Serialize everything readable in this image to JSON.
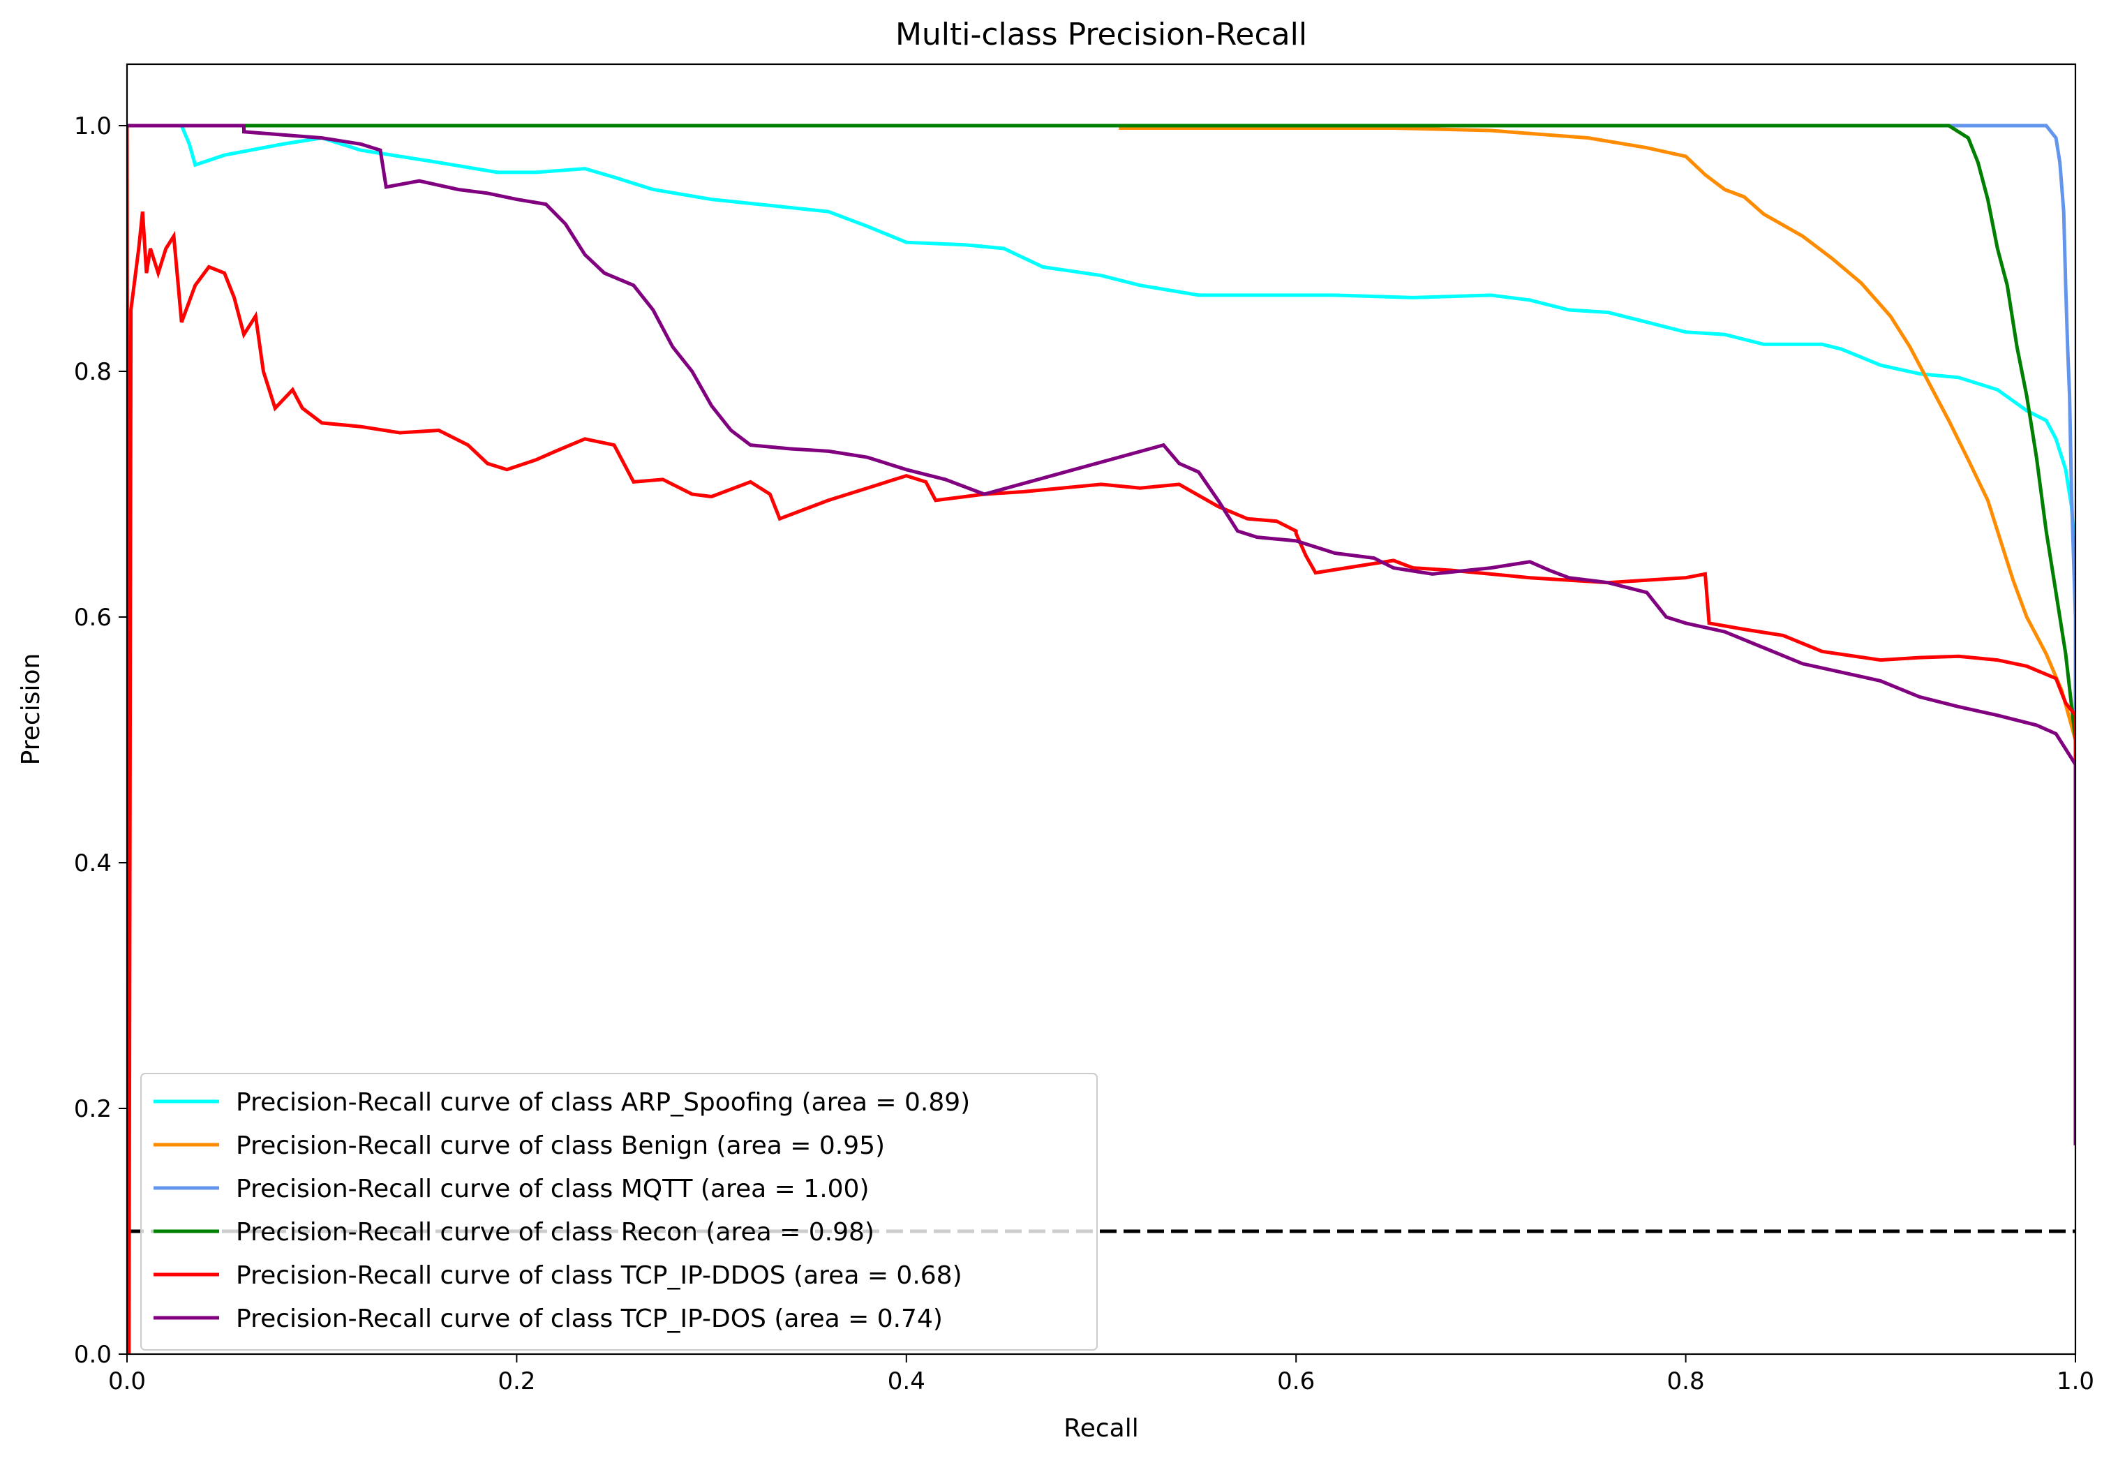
{
  "chart_data": {
    "type": "line",
    "title": "Multi-class Precision-Recall",
    "xlabel": "Recall",
    "ylabel": "Precision",
    "xlim": [
      0.0,
      1.0
    ],
    "ylim": [
      0.0,
      1.05
    ],
    "x_ticks": [
      "0.0",
      "0.2",
      "0.4",
      "0.6",
      "0.8",
      "1.0"
    ],
    "y_ticks": [
      "0.0",
      "0.2",
      "0.4",
      "0.6",
      "0.8",
      "1.0"
    ],
    "grid": false,
    "legend_position": "lower-left",
    "baseline": {
      "y": 0.1,
      "style": "dashed",
      "color": "#000000"
    },
    "series": [
      {
        "name": "Precision-Recall curve of class ARP_Spoofing (area = 0.89)",
        "color": "#00ffff",
        "points": [
          [
            0.0,
            1.0
          ],
          [
            0.028,
            1.0
          ],
          [
            0.032,
            0.985
          ],
          [
            0.035,
            0.968
          ],
          [
            0.05,
            0.976
          ],
          [
            0.08,
            0.985
          ],
          [
            0.1,
            0.99
          ],
          [
            0.12,
            0.98
          ],
          [
            0.14,
            0.975
          ],
          [
            0.16,
            0.97
          ],
          [
            0.19,
            0.962
          ],
          [
            0.21,
            0.962
          ],
          [
            0.235,
            0.965
          ],
          [
            0.25,
            0.958
          ],
          [
            0.27,
            0.948
          ],
          [
            0.3,
            0.94
          ],
          [
            0.33,
            0.935
          ],
          [
            0.36,
            0.93
          ],
          [
            0.38,
            0.918
          ],
          [
            0.4,
            0.905
          ],
          [
            0.43,
            0.903
          ],
          [
            0.45,
            0.9
          ],
          [
            0.47,
            0.885
          ],
          [
            0.5,
            0.878
          ],
          [
            0.52,
            0.87
          ],
          [
            0.55,
            0.862
          ],
          [
            0.58,
            0.862
          ],
          [
            0.62,
            0.862
          ],
          [
            0.66,
            0.86
          ],
          [
            0.7,
            0.862
          ],
          [
            0.72,
            0.858
          ],
          [
            0.74,
            0.85
          ],
          [
            0.76,
            0.848
          ],
          [
            0.78,
            0.84
          ],
          [
            0.8,
            0.832
          ],
          [
            0.82,
            0.83
          ],
          [
            0.84,
            0.822
          ],
          [
            0.87,
            0.822
          ],
          [
            0.88,
            0.818
          ],
          [
            0.9,
            0.805
          ],
          [
            0.92,
            0.798
          ],
          [
            0.94,
            0.795
          ],
          [
            0.96,
            0.785
          ],
          [
            0.975,
            0.768
          ],
          [
            0.985,
            0.76
          ],
          [
            0.99,
            0.745
          ],
          [
            0.995,
            0.72
          ],
          [
            0.998,
            0.69
          ],
          [
            1.0,
            0.65
          ],
          [
            1.0,
            0.2
          ]
        ]
      },
      {
        "name": "Precision-Recall curve of class Benign (area = 0.95)",
        "color": "#ff8c00",
        "points": [
          [
            0.0,
            1.0
          ],
          [
            0.51,
            1.0
          ],
          [
            0.51,
            0.998
          ],
          [
            0.65,
            0.998
          ],
          [
            0.7,
            0.996
          ],
          [
            0.75,
            0.99
          ],
          [
            0.78,
            0.982
          ],
          [
            0.8,
            0.975
          ],
          [
            0.81,
            0.96
          ],
          [
            0.82,
            0.948
          ],
          [
            0.83,
            0.942
          ],
          [
            0.84,
            0.928
          ],
          [
            0.86,
            0.91
          ],
          [
            0.875,
            0.892
          ],
          [
            0.89,
            0.872
          ],
          [
            0.905,
            0.845
          ],
          [
            0.915,
            0.82
          ],
          [
            0.925,
            0.79
          ],
          [
            0.935,
            0.76
          ],
          [
            0.945,
            0.728
          ],
          [
            0.955,
            0.695
          ],
          [
            0.962,
            0.66
          ],
          [
            0.968,
            0.63
          ],
          [
            0.975,
            0.6
          ],
          [
            0.985,
            0.57
          ],
          [
            0.993,
            0.54
          ],
          [
            1.0,
            0.5
          ]
        ]
      },
      {
        "name": "Precision-Recall curve of class MQTT (area = 1.00)",
        "color": "#6495ed",
        "points": [
          [
            0.0,
            1.0
          ],
          [
            0.985,
            1.0
          ],
          [
            0.99,
            0.99
          ],
          [
            0.992,
            0.97
          ],
          [
            0.994,
            0.93
          ],
          [
            0.995,
            0.87
          ],
          [
            0.996,
            0.82
          ],
          [
            0.997,
            0.78
          ],
          [
            0.998,
            0.7
          ],
          [
            1.0,
            0.6
          ],
          [
            1.0,
            0.2
          ]
        ]
      },
      {
        "name": "Precision-Recall curve of class Recon (area = 0.98)",
        "color": "#008000",
        "points": [
          [
            0.0,
            1.0
          ],
          [
            0.935,
            1.0
          ],
          [
            0.945,
            0.99
          ],
          [
            0.95,
            0.97
          ],
          [
            0.955,
            0.94
          ],
          [
            0.96,
            0.9
          ],
          [
            0.965,
            0.87
          ],
          [
            0.97,
            0.82
          ],
          [
            0.975,
            0.78
          ],
          [
            0.98,
            0.73
          ],
          [
            0.985,
            0.67
          ],
          [
            0.99,
            0.62
          ],
          [
            0.995,
            0.57
          ],
          [
            1.0,
            0.5
          ],
          [
            1.0,
            0.2
          ]
        ]
      },
      {
        "name": "Precision-Recall curve of class TCP_IP-DDOS (area = 0.68)",
        "color": "#ff0000",
        "points": [
          [
            0.0,
            1.0
          ],
          [
            0.001,
            0.0
          ],
          [
            0.002,
            0.85
          ],
          [
            0.006,
            0.9
          ],
          [
            0.008,
            0.93
          ],
          [
            0.01,
            0.88
          ],
          [
            0.012,
            0.9
          ],
          [
            0.016,
            0.88
          ],
          [
            0.02,
            0.9
          ],
          [
            0.024,
            0.91
          ],
          [
            0.028,
            0.84
          ],
          [
            0.035,
            0.87
          ],
          [
            0.042,
            0.885
          ],
          [
            0.05,
            0.88
          ],
          [
            0.055,
            0.86
          ],
          [
            0.06,
            0.83
          ],
          [
            0.066,
            0.845
          ],
          [
            0.07,
            0.8
          ],
          [
            0.076,
            0.77
          ],
          [
            0.085,
            0.785
          ],
          [
            0.09,
            0.77
          ],
          [
            0.1,
            0.758
          ],
          [
            0.12,
            0.755
          ],
          [
            0.14,
            0.75
          ],
          [
            0.16,
            0.752
          ],
          [
            0.175,
            0.74
          ],
          [
            0.185,
            0.725
          ],
          [
            0.195,
            0.72
          ],
          [
            0.21,
            0.728
          ],
          [
            0.22,
            0.735
          ],
          [
            0.235,
            0.745
          ],
          [
            0.25,
            0.74
          ],
          [
            0.26,
            0.71
          ],
          [
            0.275,
            0.712
          ],
          [
            0.29,
            0.7
          ],
          [
            0.3,
            0.698
          ],
          [
            0.32,
            0.71
          ],
          [
            0.33,
            0.7
          ],
          [
            0.335,
            0.68
          ],
          [
            0.36,
            0.695
          ],
          [
            0.38,
            0.705
          ],
          [
            0.4,
            0.715
          ],
          [
            0.41,
            0.71
          ],
          [
            0.415,
            0.695
          ],
          [
            0.44,
            0.7
          ],
          [
            0.46,
            0.702
          ],
          [
            0.48,
            0.705
          ],
          [
            0.5,
            0.708
          ],
          [
            0.52,
            0.705
          ],
          [
            0.54,
            0.708
          ],
          [
            0.56,
            0.69
          ],
          [
            0.575,
            0.68
          ],
          [
            0.59,
            0.678
          ],
          [
            0.6,
            0.67
          ],
          [
            0.6,
            0.668
          ],
          [
            0.605,
            0.65
          ],
          [
            0.61,
            0.636
          ],
          [
            0.65,
            0.646
          ],
          [
            0.66,
            0.64
          ],
          [
            0.68,
            0.638
          ],
          [
            0.7,
            0.635
          ],
          [
            0.72,
            0.632
          ],
          [
            0.76,
            0.628
          ],
          [
            0.8,
            0.632
          ],
          [
            0.81,
            0.635
          ],
          [
            0.812,
            0.595
          ],
          [
            0.83,
            0.59
          ],
          [
            0.85,
            0.585
          ],
          [
            0.87,
            0.572
          ],
          [
            0.9,
            0.565
          ],
          [
            0.92,
            0.567
          ],
          [
            0.94,
            0.568
          ],
          [
            0.96,
            0.565
          ],
          [
            0.975,
            0.56
          ],
          [
            0.99,
            0.55
          ],
          [
            0.995,
            0.53
          ],
          [
            1.0,
            0.52
          ],
          [
            1.0,
            0.2
          ]
        ]
      },
      {
        "name": "Precision-Recall curve of class TCP_IP-DOS (area = 0.74)",
        "color": "#800080",
        "points": [
          [
            0.0,
            1.0
          ],
          [
            0.06,
            1.0
          ],
          [
            0.06,
            0.995
          ],
          [
            0.1,
            0.99
          ],
          [
            0.12,
            0.985
          ],
          [
            0.13,
            0.98
          ],
          [
            0.133,
            0.95
          ],
          [
            0.15,
            0.955
          ],
          [
            0.17,
            0.948
          ],
          [
            0.185,
            0.945
          ],
          [
            0.2,
            0.94
          ],
          [
            0.215,
            0.936
          ],
          [
            0.225,
            0.92
          ],
          [
            0.235,
            0.895
          ],
          [
            0.245,
            0.88
          ],
          [
            0.26,
            0.87
          ],
          [
            0.27,
            0.85
          ],
          [
            0.28,
            0.82
          ],
          [
            0.29,
            0.8
          ],
          [
            0.3,
            0.772
          ],
          [
            0.31,
            0.752
          ],
          [
            0.32,
            0.74
          ],
          [
            0.34,
            0.737
          ],
          [
            0.36,
            0.735
          ],
          [
            0.38,
            0.73
          ],
          [
            0.4,
            0.72
          ],
          [
            0.42,
            0.712
          ],
          [
            0.44,
            0.7
          ],
          [
            0.532,
            0.74
          ],
          [
            0.54,
            0.725
          ],
          [
            0.55,
            0.718
          ],
          [
            0.56,
            0.695
          ],
          [
            0.57,
            0.67
          ],
          [
            0.58,
            0.665
          ],
          [
            0.6,
            0.662
          ],
          [
            0.62,
            0.652
          ],
          [
            0.64,
            0.648
          ],
          [
            0.65,
            0.64
          ],
          [
            0.67,
            0.635
          ],
          [
            0.7,
            0.64
          ],
          [
            0.72,
            0.645
          ],
          [
            0.73,
            0.638
          ],
          [
            0.74,
            0.632
          ],
          [
            0.76,
            0.628
          ],
          [
            0.78,
            0.62
          ],
          [
            0.79,
            0.6
          ],
          [
            0.8,
            0.595
          ],
          [
            0.82,
            0.588
          ],
          [
            0.84,
            0.575
          ],
          [
            0.86,
            0.562
          ],
          [
            0.88,
            0.555
          ],
          [
            0.9,
            0.548
          ],
          [
            0.92,
            0.535
          ],
          [
            0.94,
            0.527
          ],
          [
            0.96,
            0.52
          ],
          [
            0.98,
            0.512
          ],
          [
            0.99,
            0.505
          ],
          [
            1.0,
            0.48
          ],
          [
            1.0,
            0.17
          ]
        ]
      }
    ]
  }
}
